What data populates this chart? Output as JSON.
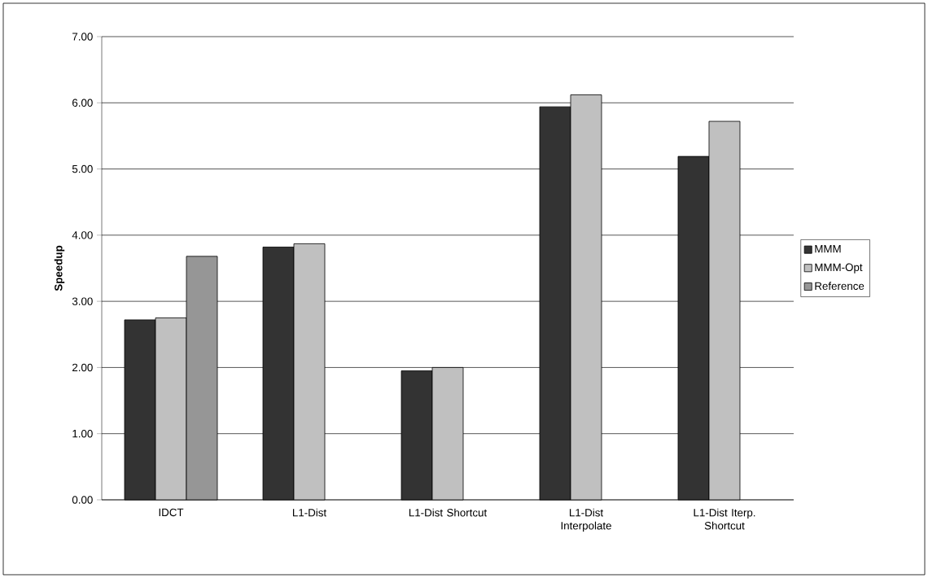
{
  "chart_data": {
    "type": "bar",
    "ylabel": "Speedup",
    "categories": [
      "IDCT",
      "L1-Dist",
      "L1-Dist Shortcut",
      "L1-Dist Interpolate",
      "L1-Dist Iterp. Shortcut"
    ],
    "series": [
      {
        "name": "MMM",
        "color": "#333333",
        "values": [
          2.72,
          3.82,
          1.95,
          5.94,
          5.19
        ]
      },
      {
        "name": "MMM-Opt",
        "color": "#c0c0c0",
        "values": [
          2.75,
          3.87,
          2.0,
          6.12,
          5.72
        ]
      },
      {
        "name": "Reference",
        "color": "#969696",
        "values": [
          3.68,
          null,
          null,
          null,
          null
        ]
      }
    ],
    "ylim": [
      0,
      7
    ],
    "yticks": [
      {
        "value": 0,
        "label": "0.00"
      },
      {
        "value": 1,
        "label": "1.00"
      },
      {
        "value": 2,
        "label": "2.00"
      },
      {
        "value": 3,
        "label": "3.00"
      },
      {
        "value": 4,
        "label": "4.00"
      },
      {
        "value": 5,
        "label": "5.00"
      },
      {
        "value": 6,
        "label": "6.00"
      },
      {
        "value": 7,
        "label": "7.00"
      }
    ],
    "grid": "y",
    "legend": "right"
  }
}
